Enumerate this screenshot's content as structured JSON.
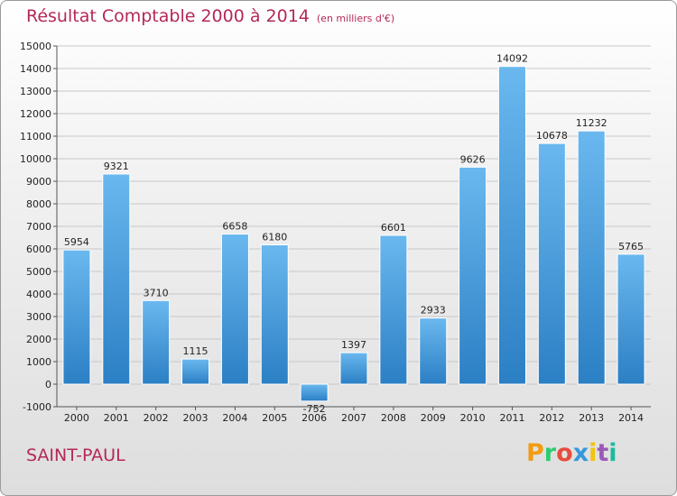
{
  "header": {
    "title": "Résultat Comptable 2000 à 2014",
    "subtitle": "(en milliers d'€)"
  },
  "footer": {
    "city": "SAINT-PAUL",
    "logo_letters": [
      "P",
      "r",
      "o",
      "x",
      "i",
      "t",
      "i"
    ]
  },
  "colors": {
    "title": "#b5285a",
    "bar_light": "#6ab8ef",
    "bar_dark": "#2b7fc4",
    "logo": [
      "#f39c12",
      "#2ecc71",
      "#e74c3c",
      "#3498db",
      "#f1c40f",
      "#9b59b6",
      "#1abc9c"
    ]
  },
  "chart_data": {
    "type": "bar",
    "categories": [
      "2000",
      "2001",
      "2002",
      "2003",
      "2004",
      "2005",
      "2006",
      "2007",
      "2008",
      "2009",
      "2010",
      "2011",
      "2012",
      "2013",
      "2014"
    ],
    "values": [
      5954,
      9321,
      3710,
      1115,
      6658,
      6180,
      -752,
      1397,
      6601,
      2933,
      9626,
      14092,
      10678,
      11232,
      5765
    ],
    "title": "Résultat Comptable 2000 à 2014",
    "ylim": [
      -1000,
      15000
    ],
    "yticks": [
      -1000,
      0,
      1000,
      2000,
      3000,
      4000,
      5000,
      6000,
      7000,
      8000,
      9000,
      10000,
      11000,
      12000,
      13000,
      14000,
      15000
    ],
    "grid": true,
    "data_labels": true
  }
}
